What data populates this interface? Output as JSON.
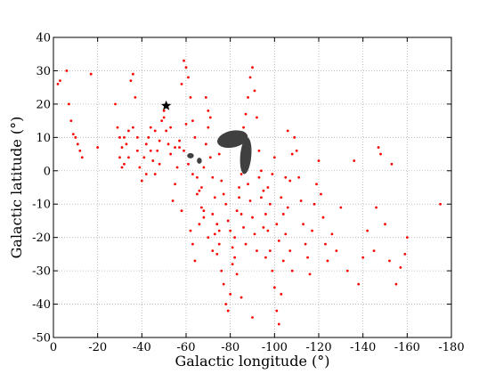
{
  "chart_data": {
    "type": "scatter",
    "title": "",
    "xlabel": "Galactic longitude (°)",
    "ylabel": "Galactic latitude (°)",
    "xlim": [
      0,
      -180
    ],
    "ylim": [
      -50,
      40
    ],
    "x_ticks": [
      0,
      -20,
      -40,
      -60,
      -80,
      -100,
      -120,
      -140,
      -160,
      -180
    ],
    "y_ticks": [
      40,
      30,
      20,
      10,
      0,
      -10,
      -20,
      -30,
      -40,
      -50
    ],
    "x_tick_labels": [
      "0",
      "-20",
      "-40",
      "-60",
      "-80",
      "-100",
      "-120",
      "-140",
      "-160",
      "-180"
    ],
    "y_tick_labels": [
      "40",
      "30",
      "20",
      "10",
      "0",
      "-10",
      "-20",
      "-30",
      "-40",
      "-50"
    ],
    "grid": true,
    "legend": "none",
    "colors": {
      "points": "#ff0000",
      "blobs": "#404040",
      "star": "#000000",
      "grid": "#b0b0b0"
    },
    "star_marker": {
      "x": -51,
      "y": 19.5
    },
    "dark_regions": [
      {
        "center": [
          -81,
          9.5
        ],
        "radius": [
          7,
          2.5
        ],
        "rotation": -12
      },
      {
        "center": [
          -87,
          4.5
        ],
        "radius": [
          2.5,
          5.5
        ],
        "rotation": 5
      },
      {
        "center": [
          -62,
          4.5
        ],
        "radius": [
          1.5,
          0.8
        ],
        "rotation": 0
      },
      {
        "center": [
          -66,
          3
        ],
        "radius": [
          1.1,
          0.9
        ],
        "rotation": 0
      }
    ],
    "series": [
      {
        "values": [
          [
            -2,
            26
          ],
          [
            -3,
            27
          ],
          [
            -6,
            30
          ],
          [
            -7,
            20
          ],
          [
            -8,
            15
          ],
          [
            -9,
            11
          ],
          [
            -10,
            10
          ],
          [
            -11,
            8
          ],
          [
            -13,
            4
          ],
          [
            -12,
            6
          ],
          [
            -17,
            29
          ],
          [
            -20,
            7
          ],
          [
            -28,
            20
          ],
          [
            -29,
            13
          ],
          [
            -30,
            10
          ],
          [
            -31,
            7
          ],
          [
            -30,
            4
          ],
          [
            -32,
            2
          ],
          [
            -33,
            8
          ],
          [
            -34,
            12
          ],
          [
            -35,
            27
          ],
          [
            -36,
            29
          ],
          [
            -37,
            22
          ],
          [
            -38,
            6
          ],
          [
            -39,
            1
          ],
          [
            -40,
            -3
          ],
          [
            -41,
            4
          ],
          [
            -42,
            8
          ],
          [
            -43,
            10
          ],
          [
            -44,
            13
          ],
          [
            -45,
            3
          ],
          [
            -46,
            -1
          ],
          [
            -47,
            6
          ],
          [
            -48,
            9
          ],
          [
            -49,
            15
          ],
          [
            -50,
            18
          ],
          [
            -50,
            16
          ],
          [
            -51,
            12
          ],
          [
            -52,
            8
          ],
          [
            -53,
            5
          ],
          [
            -54,
            -9
          ],
          [
            -55,
            -4
          ],
          [
            -56,
            1
          ],
          [
            -57,
            7
          ],
          [
            -58,
            26
          ],
          [
            -59,
            33
          ],
          [
            -60,
            31
          ],
          [
            -61,
            28
          ],
          [
            -62,
            22
          ],
          [
            -63,
            15
          ],
          [
            -64,
            10
          ],
          [
            -65,
            -2
          ],
          [
            -66,
            -6
          ],
          [
            -67,
            -11
          ],
          [
            -68,
            -14
          ],
          [
            -69,
            22
          ],
          [
            -70,
            18
          ],
          [
            -71,
            4
          ],
          [
            -72,
            -2
          ],
          [
            -73,
            -8
          ],
          [
            -74,
            -16
          ],
          [
            -75,
            -22
          ],
          [
            -76,
            -30
          ],
          [
            -77,
            -34
          ],
          [
            -78,
            -40
          ],
          [
            -79,
            -42
          ],
          [
            -80,
            -37
          ],
          [
            -81,
            -28
          ],
          [
            -82,
            -20
          ],
          [
            -83,
            -12
          ],
          [
            -84,
            -5
          ],
          [
            -85,
            -1
          ],
          [
            -86,
            13
          ],
          [
            -87,
            17
          ],
          [
            -88,
            22
          ],
          [
            -89,
            28
          ],
          [
            -90,
            31
          ],
          [
            -91,
            24
          ],
          [
            -92,
            16
          ],
          [
            -93,
            6
          ],
          [
            -94,
            0
          ],
          [
            -95,
            -6
          ],
          [
            -96,
            -13
          ],
          [
            -97,
            -18
          ],
          [
            -98,
            -24
          ],
          [
            -99,
            -30
          ],
          [
            -100,
            -35
          ],
          [
            -101,
            -42
          ],
          [
            -102,
            -46
          ],
          [
            -103,
            -37
          ],
          [
            -104,
            -27
          ],
          [
            -105,
            -19
          ],
          [
            -106,
            -11
          ],
          [
            -107,
            -3
          ],
          [
            -108,
            5
          ],
          [
            -109,
            10
          ],
          [
            -110,
            6
          ],
          [
            -111,
            -2
          ],
          [
            -112,
            -9
          ],
          [
            -113,
            -16
          ],
          [
            -114,
            -22
          ],
          [
            -115,
            -26
          ],
          [
            -116,
            -31
          ],
          [
            -117,
            -18
          ],
          [
            -118,
            -10
          ],
          [
            -119,
            -4
          ],
          [
            -120,
            3
          ],
          [
            -121,
            -7
          ],
          [
            -122,
            -14
          ],
          [
            -123,
            -22
          ],
          [
            -124,
            -27
          ],
          [
            -126,
            -19
          ],
          [
            -128,
            -24
          ],
          [
            -130,
            -11
          ],
          [
            -133,
            -30
          ],
          [
            -136,
            3
          ],
          [
            -138,
            -34
          ],
          [
            -140,
            -26
          ],
          [
            -142,
            -18
          ],
          [
            -145,
            -24
          ],
          [
            -146,
            -11
          ],
          [
            -147,
            7
          ],
          [
            -148,
            5
          ],
          [
            -150,
            -16
          ],
          [
            -152,
            -27
          ],
          [
            -153,
            2
          ],
          [
            -155,
            -34
          ],
          [
            -157,
            -29
          ],
          [
            -159,
            -25
          ],
          [
            -160,
            -20
          ],
          [
            -175,
            -10
          ],
          [
            -46,
            12
          ],
          [
            -55,
            7
          ],
          [
            -58,
            -12
          ],
          [
            -60,
            14
          ],
          [
            -62,
            -18
          ],
          [
            -63,
            -22
          ],
          [
            -64,
            -27
          ],
          [
            -66,
            -16
          ],
          [
            -67,
            -5
          ],
          [
            -68,
            1
          ],
          [
            -69,
            8
          ],
          [
            -70,
            13
          ],
          [
            -71,
            16
          ],
          [
            -72,
            -13
          ],
          [
            -73,
            -19
          ],
          [
            -74,
            -25
          ],
          [
            -75,
            5
          ],
          [
            -76,
            -3
          ],
          [
            -77,
            -7
          ],
          [
            -78,
            -10
          ],
          [
            -79,
            -15
          ],
          [
            -80,
            -18
          ],
          [
            -81,
            -23
          ],
          [
            -82,
            -26
          ],
          [
            -83,
            -31
          ],
          [
            -84,
            -8
          ],
          [
            -85,
            -13
          ],
          [
            -86,
            -17
          ],
          [
            -87,
            -22
          ],
          [
            -88,
            -4
          ],
          [
            -89,
            -9
          ],
          [
            -90,
            -14
          ],
          [
            -91,
            -19
          ],
          [
            -92,
            -24
          ],
          [
            -93,
            -2
          ],
          [
            -94,
            -8
          ],
          [
            -95,
            -17
          ],
          [
            -96,
            -26
          ],
          [
            -97,
            -5
          ],
          [
            -98,
            -10
          ],
          [
            -99,
            -1
          ],
          [
            -100,
            4
          ],
          [
            -101,
            -16
          ],
          [
            -102,
            -21
          ],
          [
            -103,
            -8
          ],
          [
            -104,
            -13
          ],
          [
            -105,
            -2
          ],
          [
            -106,
            12
          ],
          [
            -107,
            -24
          ],
          [
            -108,
            -30
          ],
          [
            -90,
            -44
          ],
          [
            -85,
            -38
          ],
          [
            -75,
            -18
          ],
          [
            -72,
            -24
          ],
          [
            -70,
            -20
          ],
          [
            -68,
            -12
          ],
          [
            -65,
            -7
          ],
          [
            -63,
            -1
          ],
          [
            -61,
            2
          ],
          [
            -59,
            6
          ],
          [
            -57,
            9
          ],
          [
            -53,
            13
          ],
          [
            -48,
            2
          ],
          [
            -44,
            6
          ],
          [
            -42,
            -1
          ],
          [
            -38,
            10
          ],
          [
            -36,
            13
          ],
          [
            -34,
            4
          ],
          [
            -32,
            10
          ],
          [
            -31,
            1
          ]
        ]
      }
    ]
  }
}
